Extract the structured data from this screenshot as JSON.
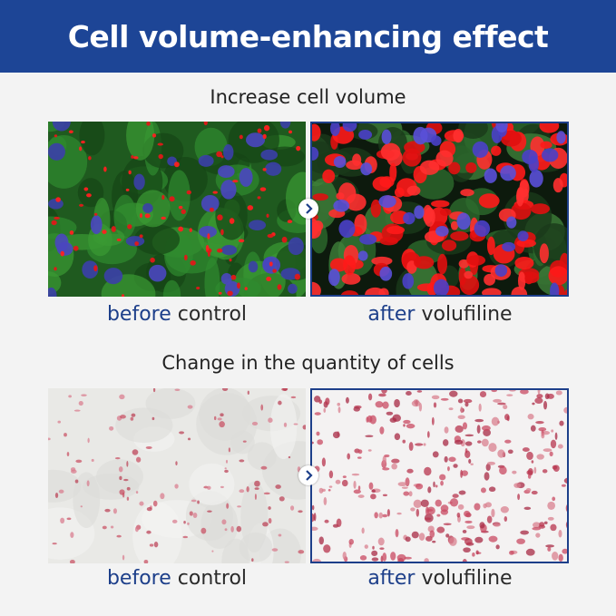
{
  "header": {
    "title": "Cell volume-enhancing effect"
  },
  "sections": [
    {
      "heading": "Increase cell volume",
      "before": {
        "highlight": "before",
        "text": "control"
      },
      "after": {
        "highlight": "after",
        "text": "volufiline"
      }
    },
    {
      "heading": "Change in the quantity of cells",
      "before": {
        "highlight": "before",
        "text": "control"
      },
      "after": {
        "highlight": "after",
        "text": "volufiline"
      }
    }
  ]
}
